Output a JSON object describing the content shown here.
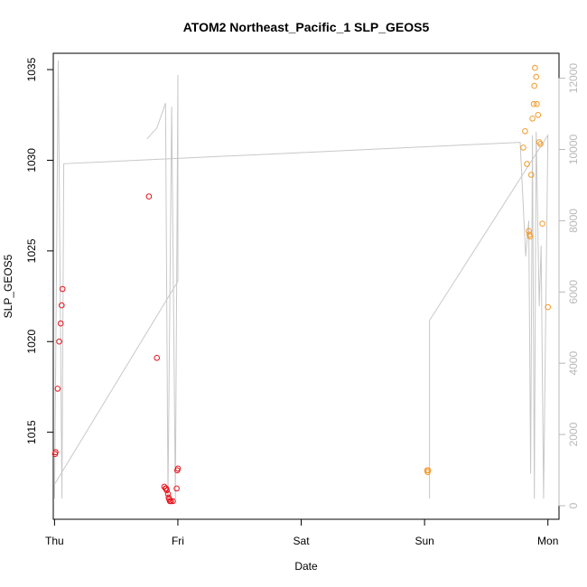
{
  "chart_data": {
    "type": "scatter",
    "title": "ATOM2 Northeast_Pacific_1 SLP_GEOS5",
    "xlabel": "Date",
    "ylabel": "SLP_GEOS5",
    "x_ticks": [
      "Thu",
      "Fri",
      "Sat",
      "Sun",
      "Mon"
    ],
    "xlim": [
      -0.01,
      4.09
    ],
    "ylim": [
      1010.2,
      1035.9
    ],
    "y_ticks": [
      1015,
      1020,
      1025,
      1030,
      1035
    ],
    "y2lim": [
      -380,
      12700
    ],
    "y2_ticks": [
      0,
      2000,
      4000,
      6000,
      8000,
      10000,
      12000
    ],
    "colors": {
      "series_early": "#e8111a",
      "series_late": "#f39a2a",
      "secondary_line": "#c8c8c8",
      "secondary_axis": "#b8b8b8"
    },
    "series": [
      {
        "color": "#e8111a",
        "x": [
          0.005,
          0.008,
          0.025,
          0.038,
          0.05,
          0.058,
          0.065,
          0.765,
          0.83,
          0.89,
          0.9,
          0.905,
          0.91,
          0.92,
          0.925,
          0.93,
          0.935,
          0.945,
          0.96,
          0.99,
          0.995,
          1.0
        ],
        "y": [
          1013.8,
          1013.9,
          1017.4,
          1020,
          1021,
          1022,
          1022.9,
          1028,
          1019.1,
          1012,
          1011.9,
          1011.9,
          1011.8,
          1011.6,
          1011.4,
          1011.3,
          1011.2,
          1011.2,
          1011.2,
          1011.9,
          1012.9,
          1013
        ]
      },
      {
        "color": "#f39a2a",
        "x": [
          3.02,
          3.025,
          3.03,
          3.8,
          3.815,
          3.83,
          3.845,
          3.85,
          3.855,
          3.865,
          3.875,
          3.885,
          3.89,
          3.895,
          3.905,
          3.91,
          3.92,
          3.93,
          3.94,
          3.955,
          4.0
        ],
        "y": [
          1012.9,
          1012.8,
          1012.9,
          1030.7,
          1031.6,
          1029.8,
          1026.1,
          1025.9,
          1025.8,
          1029.2,
          1032.3,
          1033.1,
          1034.1,
          1035.1,
          1034.6,
          1033.1,
          1032.5,
          1031,
          1030.9,
          1026.5,
          1021.9
        ]
      }
    ],
    "secondary_line": [
      [
        0.75,
        10300
      ],
      [
        0.83,
        10600
      ],
      [
        0.9,
        11300
      ],
      [
        0.92,
        200
      ],
      [
        0.95,
        11200
      ],
      [
        0.98,
        200
      ],
      [
        1.0,
        12100
      ],
      [
        1.0,
        6300
      ],
      [
        0.0,
        600
      ],
      [
        0.0,
        200
      ],
      [
        0.03,
        12500
      ],
      [
        0.06,
        200
      ],
      [
        0.075,
        9600
      ],
      [
        3.775,
        10200
      ],
      [
        3.82,
        7000
      ],
      [
        3.845,
        8000
      ],
      [
        3.86,
        900
      ],
      [
        3.875,
        10400
      ],
      [
        3.89,
        200
      ],
      [
        3.905,
        10500
      ],
      [
        3.93,
        5600
      ],
      [
        3.945,
        7300
      ],
      [
        3.965,
        200
      ],
      [
        4.0,
        10400
      ],
      [
        3.04,
        5200
      ],
      [
        3.04,
        200
      ]
    ]
  }
}
